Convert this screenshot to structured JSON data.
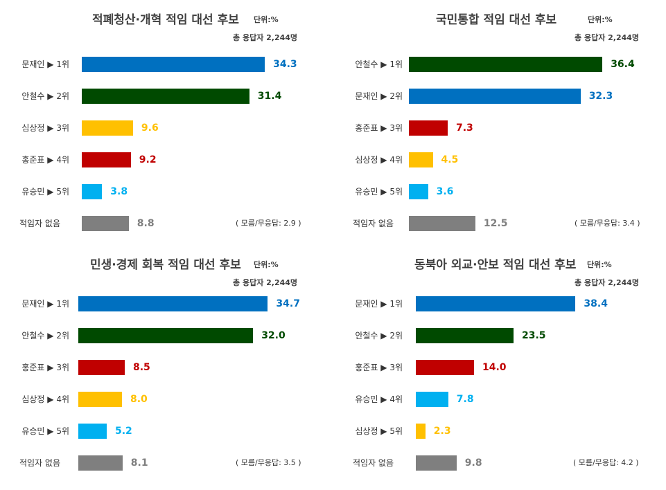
{
  "chart_data": [
    {
      "type": "bar",
      "title": "적폐청산·개혁 적임 대선 후보",
      "unit_label": "단위:%",
      "respondents_label": "총  응답자  2,244명",
      "categories": [
        "문재인 ▶ 1위",
        "안철수 ▶ 2위",
        "심상정 ▶ 3위",
        "홍준표 ▶ 4위",
        "유승민 ▶ 5위",
        "적임자 없음"
      ],
      "values": [
        34.3,
        31.4,
        9.6,
        9.2,
        3.8,
        8.8
      ],
      "value_labels": [
        "34.3",
        "31.4",
        "9.6",
        "9.2",
        "3.8",
        "8.8"
      ],
      "colors": [
        "#0070c0",
        "#004a00",
        "#ffc000",
        "#c00000",
        "#00b0f0",
        "#7f7f7f"
      ],
      "note": "( 모름/무응답:  2.9 )"
    },
    {
      "type": "bar",
      "title": "국민통합 적임 대선 후보",
      "unit_label": "단위:%",
      "respondents_label": "총  응답자  2,244명",
      "categories": [
        "안철수 ▶ 1위",
        "문재인 ▶ 2위",
        "홍준표 ▶ 3위",
        "심상정 ▶ 4위",
        "유승민 ▶ 5위",
        "적임자 없음"
      ],
      "values": [
        36.4,
        32.3,
        7.3,
        4.5,
        3.6,
        12.5
      ],
      "value_labels": [
        "36.4",
        "32.3",
        "7.3",
        "4.5",
        "3.6",
        "12.5"
      ],
      "colors": [
        "#004a00",
        "#0070c0",
        "#c00000",
        "#ffc000",
        "#00b0f0",
        "#7f7f7f"
      ],
      "note": "( 모름/무응답: 3.4 )"
    },
    {
      "type": "bar",
      "title": "민생·경제 회복 적임 대선 후보",
      "unit_label": "단위:%",
      "respondents_label": "총  응답자  2,244명",
      "categories": [
        "문재인 ▶ 1위",
        "안철수 ▶ 2위",
        "홍준표 ▶ 3위",
        "심상정 ▶ 4위",
        "유승민 ▶ 5위",
        "적임자 없음"
      ],
      "values": [
        34.7,
        32.0,
        8.5,
        8.0,
        5.2,
        8.1
      ],
      "value_labels": [
        "34.7",
        "32.0",
        "8.5",
        "8.0",
        "5.2",
        "8.1"
      ],
      "colors": [
        "#0070c0",
        "#004a00",
        "#c00000",
        "#ffc000",
        "#00b0f0",
        "#7f7f7f"
      ],
      "note": "( 모름/무응답:  3.5 )"
    },
    {
      "type": "bar",
      "title": "동북아 외교·안보 적임 대선 후보",
      "unit_label": "단위:%",
      "respondents_label": "총  응답자  2,244명",
      "categories": [
        "문재인 ▶ 1위",
        "안철수 ▶ 2위",
        "홍준표 ▶ 3위",
        "유승민 ▶ 4위",
        "심상정 ▶ 5위",
        "적임자 없음"
      ],
      "values": [
        38.4,
        23.5,
        14.0,
        7.8,
        2.3,
        9.8
      ],
      "value_labels": [
        "38.4",
        "23.5",
        "14.0",
        "7.8",
        "2.3",
        "9.8"
      ],
      "colors": [
        "#0070c0",
        "#004a00",
        "#c00000",
        "#00b0f0",
        "#ffc000",
        "#7f7f7f"
      ],
      "note": "( 모름/무응답: 4.2 )"
    }
  ]
}
